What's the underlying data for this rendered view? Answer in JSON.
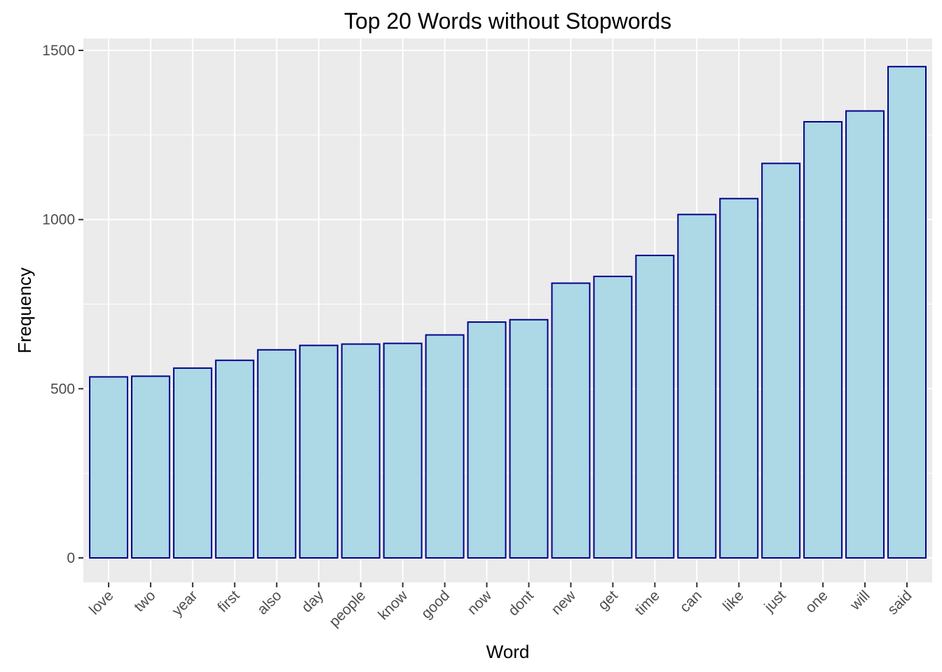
{
  "chart_data": {
    "type": "bar",
    "title": "Top 20 Words without Stopwords",
    "xlabel": "Word",
    "ylabel": "Frequency",
    "categories": [
      "love",
      "two",
      "year",
      "first",
      "also",
      "day",
      "people",
      "know",
      "good",
      "now",
      "dont",
      "new",
      "get",
      "time",
      "can",
      "like",
      "just",
      "one",
      "will",
      "said"
    ],
    "values": [
      535,
      537,
      561,
      584,
      615,
      628,
      632,
      634,
      659,
      697,
      704,
      812,
      832,
      894,
      1015,
      1062,
      1166,
      1289,
      1321,
      1452
    ],
    "ylim": [
      -75,
      1525
    ],
    "yticks": [
      0,
      500,
      1000,
      1500
    ],
    "grid": true,
    "legend": "none",
    "colors": {
      "bar_fill": "#add8e6",
      "bar_stroke": "#00008b",
      "panel": "#ebebeb",
      "grid": "#ffffff"
    }
  }
}
